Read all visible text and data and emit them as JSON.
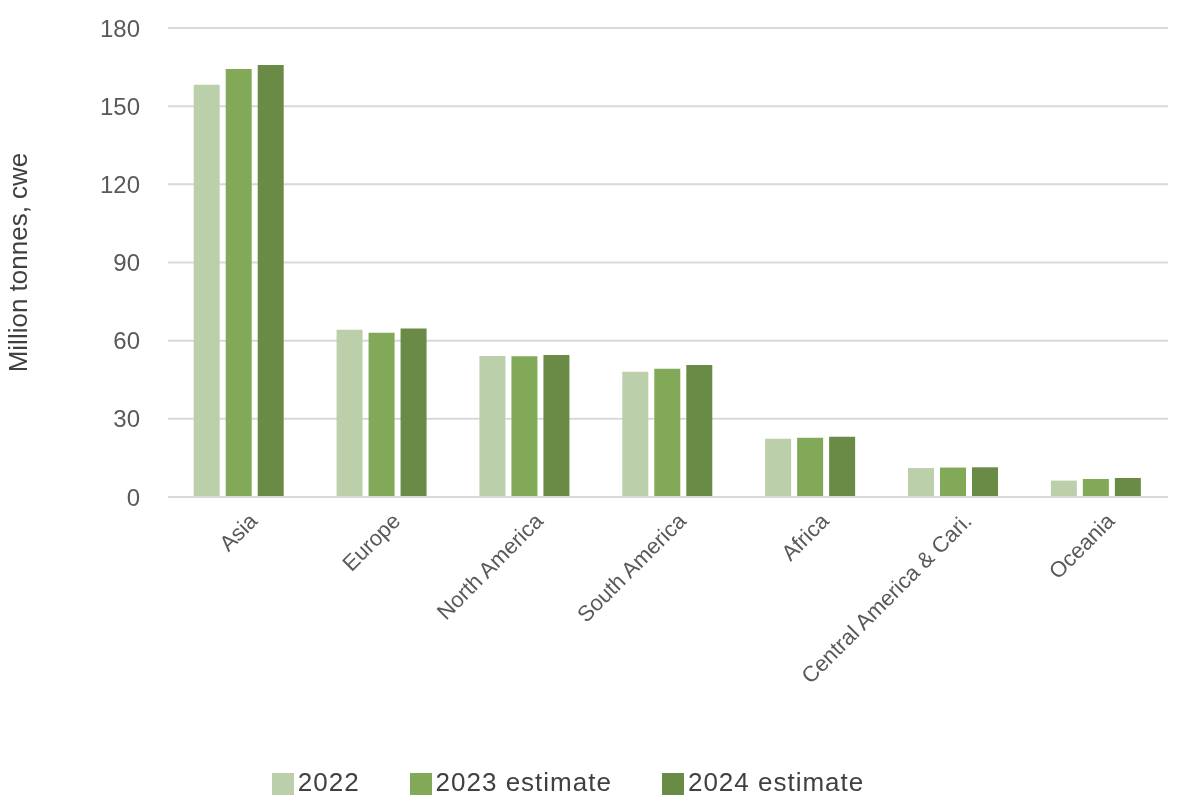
{
  "chart_data": {
    "type": "bar",
    "ylabel": "Million tonnes, cwe",
    "categories": [
      "Asia",
      "Europe",
      "North America",
      "South America",
      "Africa",
      "Central America & Cari.",
      "Oceania"
    ],
    "series": [
      {
        "name": "2022",
        "color": "#bbcfab",
        "values": [
          158.2,
          64.2,
          54.1,
          48.1,
          22.4,
          11.1,
          6.3
        ]
      },
      {
        "name": "2023 estimate",
        "color": "#81a957",
        "values": [
          164.3,
          63,
          54,
          49.2,
          22.7,
          11.3,
          6.9
        ]
      },
      {
        "name": "2024 estimate",
        "color": "#6a8b45",
        "values": [
          165.8,
          64.7,
          54.5,
          50.7,
          23.1,
          11.4,
          7.3
        ]
      }
    ],
    "ylim": [
      0,
      180
    ],
    "yticks": [
      0,
      30,
      60,
      90,
      120,
      150,
      180
    ],
    "grid": "y",
    "legend": "bottom"
  }
}
